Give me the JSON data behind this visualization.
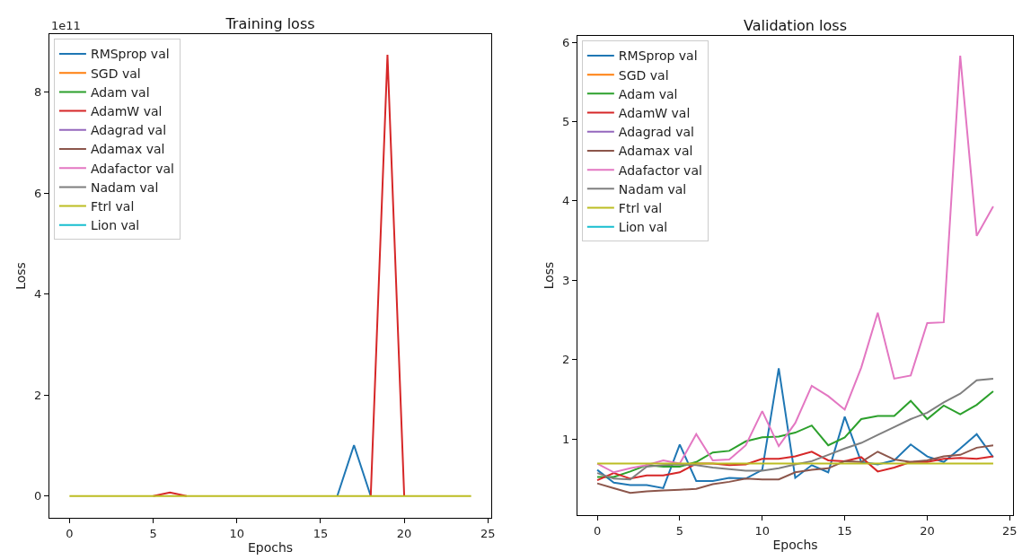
{
  "chart_data": [
    {
      "type": "line",
      "title": "Training loss",
      "xlabel": "Epochs",
      "ylabel": "Loss",
      "annotations": [
        "1e11"
      ],
      "legend": "top left",
      "grid": false,
      "xlim": [
        -1.2,
        25.2
      ],
      "xticks": [
        0,
        5,
        10,
        15,
        20,
        25
      ],
      "ylim": [
        -0.43,
        9.15
      ],
      "yticks": [
        0,
        2,
        4,
        6,
        8
      ],
      "x": [
        0,
        1,
        2,
        3,
        4,
        5,
        6,
        7,
        8,
        9,
        10,
        11,
        12,
        13,
        14,
        15,
        16,
        17,
        18,
        19,
        20,
        21,
        22,
        23,
        24
      ],
      "series": [
        {
          "name": "RMSprop val",
          "color": "#1f77b4",
          "values": [
            null,
            null,
            null,
            null,
            null,
            null,
            null,
            null,
            null,
            null,
            null,
            null,
            null,
            null,
            null,
            null,
            0,
            1.01,
            0,
            null,
            null,
            null,
            null,
            null,
            null
          ]
        },
        {
          "name": "SGD val",
          "color": "#ff7f0e",
          "values": [
            null,
            null,
            null,
            null,
            null,
            null,
            null,
            null,
            null,
            null,
            null,
            null,
            null,
            null,
            null,
            null,
            null,
            null,
            null,
            null,
            null,
            null,
            null,
            null,
            null
          ]
        },
        {
          "name": "Adam val",
          "color": "#2ca02c",
          "values": [
            null,
            null,
            null,
            null,
            null,
            null,
            null,
            null,
            null,
            null,
            null,
            null,
            null,
            null,
            null,
            null,
            null,
            null,
            null,
            null,
            null,
            null,
            null,
            null,
            null
          ]
        },
        {
          "name": "AdamW val",
          "color": "#d62728",
          "values": [
            null,
            null,
            null,
            null,
            null,
            0,
            0.07,
            0,
            null,
            null,
            null,
            null,
            null,
            null,
            null,
            null,
            null,
            null,
            0,
            8.74,
            0,
            null,
            null,
            null,
            null
          ]
        },
        {
          "name": "Adagrad val",
          "color": "#9467bd",
          "values": [
            null,
            null,
            null,
            null,
            null,
            null,
            null,
            null,
            null,
            null,
            null,
            null,
            null,
            null,
            null,
            null,
            null,
            null,
            null,
            null,
            null,
            null,
            null,
            null,
            null
          ]
        },
        {
          "name": "Adamax val",
          "color": "#8c564b",
          "values": [
            null,
            null,
            null,
            null,
            null,
            null,
            null,
            null,
            null,
            null,
            null,
            null,
            null,
            null,
            null,
            null,
            null,
            null,
            null,
            null,
            null,
            null,
            null,
            null,
            null
          ]
        },
        {
          "name": "Adafactor val",
          "color": "#e377c2",
          "values": [
            null,
            null,
            null,
            null,
            null,
            null,
            null,
            null,
            null,
            null,
            null,
            null,
            null,
            null,
            null,
            null,
            null,
            null,
            null,
            null,
            null,
            null,
            null,
            null,
            null
          ]
        },
        {
          "name": "Nadam val",
          "color": "#7f7f7f",
          "values": [
            null,
            null,
            null,
            null,
            null,
            null,
            null,
            null,
            null,
            null,
            null,
            null,
            null,
            null,
            null,
            null,
            null,
            null,
            null,
            null,
            null,
            null,
            null,
            null,
            null
          ]
        },
        {
          "name": "Ftrl val",
          "color": "#bcbd22",
          "values": [
            0,
            0,
            0,
            0,
            0,
            0,
            0,
            0,
            0,
            0,
            0,
            0,
            0,
            0,
            0,
            0,
            0,
            0,
            0,
            0,
            0,
            0,
            0,
            0,
            0
          ]
        },
        {
          "name": "Lion val",
          "color": "#17becf",
          "values": [
            null,
            null,
            null,
            null,
            null,
            null,
            null,
            null,
            null,
            null,
            null,
            null,
            null,
            null,
            null,
            null,
            null,
            null,
            null,
            null,
            null,
            null,
            null,
            null,
            null
          ]
        }
      ]
    },
    {
      "type": "line",
      "title": "Validation loss",
      "xlabel": "Epochs",
      "ylabel": "Loss",
      "legend": "top left",
      "grid": false,
      "xlim": [
        -1.2,
        25.2
      ],
      "xticks": [
        0,
        5,
        10,
        15,
        20,
        25
      ],
      "ylim": [
        0.04,
        6.08
      ],
      "yticks": [
        1,
        2,
        3,
        4,
        5,
        6
      ],
      "x": [
        0,
        1,
        2,
        3,
        4,
        5,
        6,
        7,
        8,
        9,
        10,
        11,
        12,
        13,
        14,
        15,
        16,
        17,
        18,
        19,
        20,
        21,
        22,
        23,
        24
      ],
      "series": [
        {
          "name": "RMSprop val",
          "color": "#1f77b4",
          "values": [
            0.61,
            0.45,
            0.42,
            0.42,
            0.38,
            0.93,
            0.47,
            0.47,
            0.51,
            0.5,
            0.61,
            1.89,
            0.51,
            0.67,
            0.58,
            1.28,
            0.71,
            0.68,
            0.73,
            0.93,
            0.78,
            0.71,
            0.88,
            1.06,
            0.77
          ]
        },
        {
          "name": "SGD val",
          "color": "#ff7f0e",
          "values": [
            null,
            null,
            null,
            null,
            null,
            null,
            null,
            null,
            null,
            null,
            null,
            null,
            null,
            null,
            null,
            null,
            null,
            null,
            null,
            null,
            null,
            null,
            null,
            null,
            null
          ]
        },
        {
          "name": "Adam val",
          "color": "#2ca02c",
          "values": [
            0.52,
            0.52,
            0.59,
            0.67,
            0.65,
            0.65,
            0.71,
            0.83,
            0.85,
            0.97,
            1.02,
            1.03,
            1.08,
            1.17,
            0.92,
            1.02,
            1.25,
            1.29,
            1.29,
            1.48,
            1.25,
            1.42,
            1.31,
            1.43,
            1.6
          ]
        },
        {
          "name": "AdamW val",
          "color": "#d62728",
          "values": [
            0.48,
            0.57,
            0.5,
            0.54,
            0.54,
            0.58,
            0.69,
            0.69,
            0.67,
            0.68,
            0.75,
            0.75,
            0.78,
            0.84,
            0.73,
            0.72,
            0.77,
            0.59,
            0.64,
            0.71,
            0.71,
            0.75,
            0.76,
            0.75,
            0.78
          ]
        },
        {
          "name": "Adagrad val",
          "color": "#9467bd",
          "values": [
            null,
            null,
            null,
            null,
            null,
            null,
            null,
            null,
            null,
            null,
            null,
            null,
            null,
            null,
            null,
            null,
            null,
            null,
            null,
            null,
            null,
            null,
            null,
            null,
            null
          ]
        },
        {
          "name": "Adamax val",
          "color": "#8c564b",
          "values": [
            0.44,
            0.38,
            0.32,
            0.34,
            0.35,
            0.36,
            0.37,
            0.43,
            0.46,
            0.5,
            0.49,
            0.49,
            0.58,
            0.61,
            0.63,
            0.72,
            0.71,
            0.84,
            0.74,
            0.71,
            0.73,
            0.78,
            0.8,
            0.89,
            0.92
          ]
        },
        {
          "name": "Adafactor val",
          "color": "#e377c2",
          "values": [
            0.69,
            0.58,
            0.63,
            0.67,
            0.73,
            0.69,
            1.06,
            0.73,
            0.74,
            0.92,
            1.35,
            0.91,
            1.2,
            1.67,
            1.54,
            1.37,
            1.9,
            2.59,
            1.76,
            1.8,
            2.46,
            2.47,
            5.83,
            3.56,
            3.93
          ]
        },
        {
          "name": "Nadam val",
          "color": "#7f7f7f",
          "values": [
            0.57,
            0.5,
            0.49,
            0.65,
            0.67,
            0.68,
            0.67,
            0.64,
            0.62,
            0.6,
            0.6,
            0.63,
            0.68,
            0.72,
            0.8,
            0.88,
            0.95,
            1.05,
            1.15,
            1.25,
            1.33,
            1.46,
            1.57,
            1.74,
            1.76
          ]
        },
        {
          "name": "Ftrl val",
          "color": "#bcbd22",
          "values": [
            0.69,
            0.69,
            0.69,
            0.69,
            0.69,
            0.69,
            0.69,
            0.69,
            0.69,
            0.69,
            0.69,
            0.69,
            0.69,
            0.69,
            0.69,
            0.69,
            0.69,
            0.69,
            0.69,
            0.69,
            0.69,
            0.69,
            0.69,
            0.69,
            0.69
          ]
        },
        {
          "name": "Lion val",
          "color": "#17becf",
          "values": [
            null,
            null,
            null,
            null,
            null,
            null,
            null,
            null,
            null,
            null,
            null,
            null,
            null,
            null,
            null,
            null,
            null,
            null,
            null,
            null,
            null,
            null,
            null,
            null,
            null
          ]
        }
      ]
    }
  ]
}
